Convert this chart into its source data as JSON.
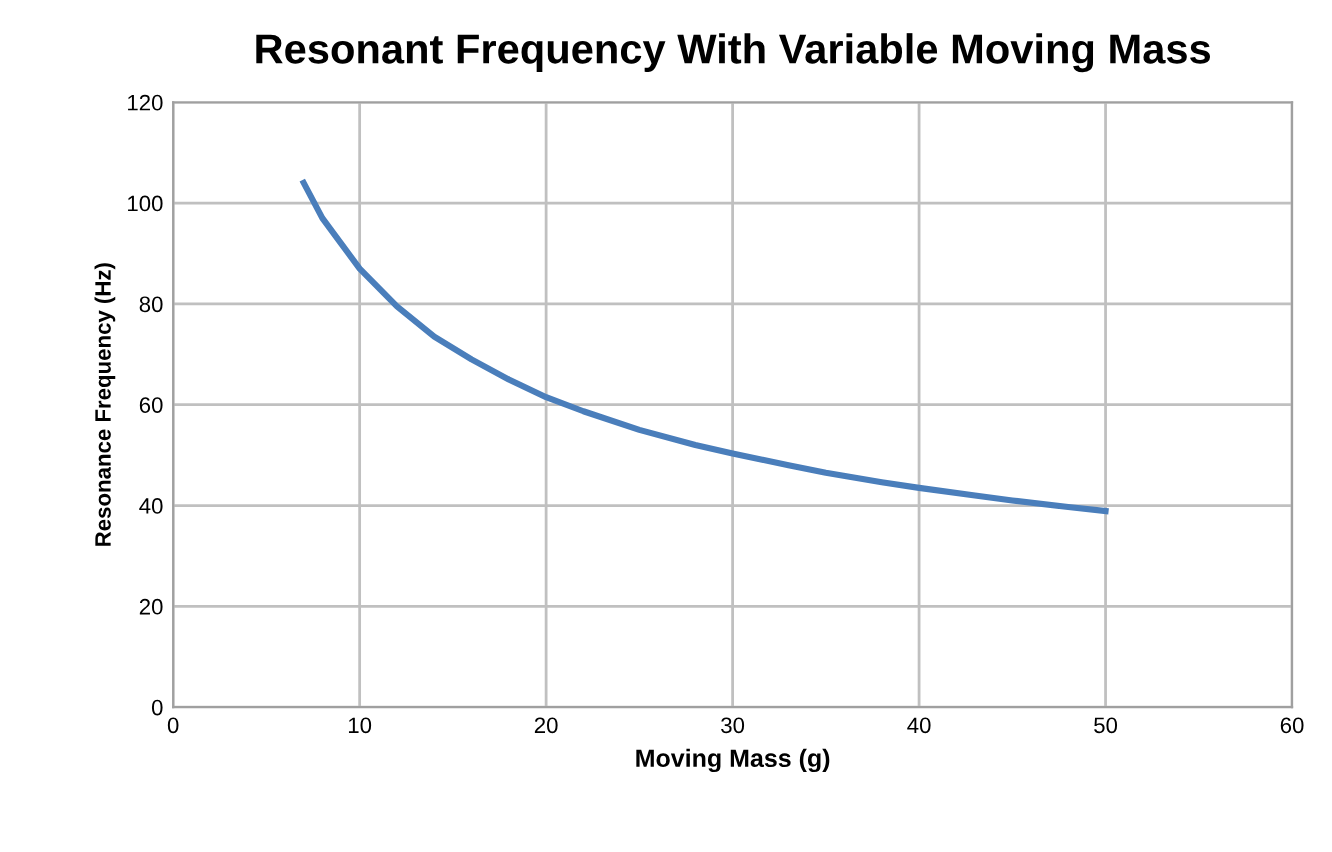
{
  "chart_data": {
    "type": "line",
    "title": "Resonant Frequency With Variable Moving Mass",
    "xlabel": "Moving Mass (g)",
    "ylabel": "Resonance Frequency (Hz)",
    "x": [
      7,
      8,
      9,
      10,
      12,
      14,
      16,
      18,
      20,
      22,
      25,
      28,
      30,
      33,
      35,
      38,
      40,
      43,
      45,
      48,
      50
    ],
    "series": [
      {
        "color": "#4a7ebb",
        "values": [
          104,
          97,
          92,
          87,
          79.5,
          73.5,
          69,
          65,
          61.5,
          58.7,
          55,
          52,
          50.3,
          48,
          46.5,
          44.6,
          43.5,
          42,
          41,
          39.7,
          38.9
        ]
      }
    ],
    "xlim": [
      0,
      60
    ],
    "xticks": [
      0,
      10,
      20,
      30,
      40,
      50,
      60
    ],
    "ylim": [
      0,
      120
    ],
    "yticks": [
      0,
      20,
      40,
      60,
      80,
      100,
      120
    ],
    "grid": true,
    "legend": false,
    "marker": "none",
    "line_style": "solid"
  }
}
